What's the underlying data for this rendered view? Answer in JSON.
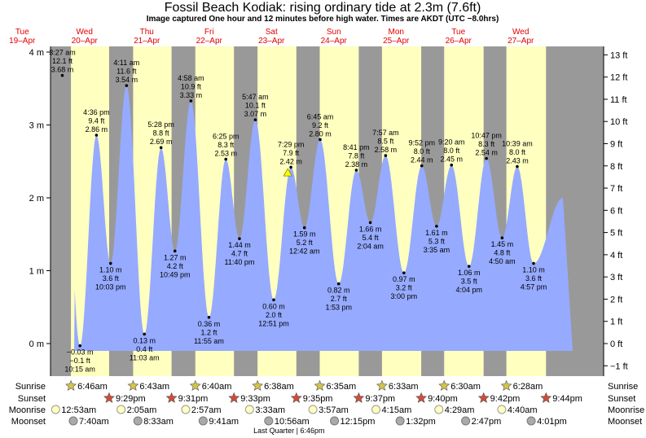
{
  "title": "Fossil Beach Kodiak: rising  ordinary tide at 2.3m (7.6ft)",
  "subtitle": "Image captured One hour and 12 minutes before high water. Times are AKDT (UTC −8.0hrs)",
  "colors": {
    "day_bg": "#ffffc0",
    "night_bg": "#999999",
    "tide_fill": "#96aaff",
    "day_label": "#e00000",
    "sun_star": "#d4c44a",
    "sunset_star": "#d24b3a",
    "moonrise": "#ffffc0",
    "moonset": "#aaaaaa"
  },
  "chart_data": {
    "type": "area",
    "ylabel_left_unit": "m",
    "ylabel_right_unit": "ft",
    "ylim_m": [
      -0.4,
      4.0
    ],
    "ylim_ft": [
      -1.3,
      13.1
    ],
    "left_ticks": [
      "4 m",
      "3 m",
      "2 m",
      "1 m",
      "0 m"
    ],
    "left_tick_values": [
      4,
      3,
      2,
      1,
      0
    ],
    "right_ticks": [
      "13 ft",
      "12 ft",
      "11 ft",
      "10 ft",
      "9 ft",
      "8 ft",
      "7 ft",
      "6 ft",
      "5 ft",
      "4 ft",
      "3 ft",
      "2 ft",
      "1 ft",
      "0 ft",
      "−1 ft"
    ],
    "right_tick_values": [
      13,
      12,
      11,
      10,
      9,
      8,
      7,
      6,
      5,
      4,
      3,
      2,
      1,
      0,
      -1
    ],
    "days": [
      {
        "name": "Tue",
        "date": "19–Apr"
      },
      {
        "name": "Wed",
        "date": "20–Apr"
      },
      {
        "name": "Thu",
        "date": "21–Apr"
      },
      {
        "name": "Fri",
        "date": "22–Apr"
      },
      {
        "name": "Sat",
        "date": "23–Apr"
      },
      {
        "name": "Sun",
        "date": "24–Apr"
      },
      {
        "name": "Mon",
        "date": "25–Apr"
      },
      {
        "name": "Tue",
        "date": "26–Apr"
      },
      {
        "name": "Wed",
        "date": "27–Apr"
      }
    ],
    "tides": [
      {
        "day": 0,
        "time": "3:27 am",
        "hour": 3.45,
        "m": 3.68,
        "label": [
          "3:27 am",
          "12.1 ft",
          "3.68 m"
        ],
        "pos": "above"
      },
      {
        "day": 0,
        "time": "10:15 am",
        "hour": 10.25,
        "m": -0.03,
        "label": [
          "−0.03 m",
          "−0.1 ft",
          "10:15 am"
        ],
        "pos": "below"
      },
      {
        "day": 0,
        "time": "4:36 pm",
        "hour": 16.6,
        "m": 2.86,
        "label": [
          "4:36 pm",
          "9.4 ft",
          "2.86 m"
        ],
        "pos": "above"
      },
      {
        "day": 0,
        "time": "10:03 pm",
        "hour": 22.05,
        "m": 1.1,
        "label": [
          "1.10 m",
          "3.6 ft",
          "10:03 pm"
        ],
        "pos": "below"
      },
      {
        "day": 1,
        "time": "4:11 am",
        "hour": 4.18,
        "m": 3.54,
        "label": [
          "4:11 am",
          "11.6 ft",
          "3.54 m"
        ],
        "pos": "above"
      },
      {
        "day": 1,
        "time": "11:03 am",
        "hour": 11.05,
        "m": 0.13,
        "label": [
          "0.13 m",
          "0.4 ft",
          "11:03 am"
        ],
        "pos": "below"
      },
      {
        "day": 1,
        "time": "5:28 pm",
        "hour": 17.47,
        "m": 2.69,
        "label": [
          "5:28 pm",
          "8.8 ft",
          "2.69 m"
        ],
        "pos": "above"
      },
      {
        "day": 1,
        "time": "10:49 pm",
        "hour": 22.82,
        "m": 1.27,
        "label": [
          "1.27 m",
          "4.2 ft",
          "10:49 pm"
        ],
        "pos": "below"
      },
      {
        "day": 2,
        "time": "4:58 am",
        "hour": 4.97,
        "m": 3.33,
        "label": [
          "4:58 am",
          "10.9 ft",
          "3.33 m"
        ],
        "pos": "above"
      },
      {
        "day": 2,
        "time": "11:55 am",
        "hour": 11.92,
        "m": 0.36,
        "label": [
          "0.36 m",
          "1.2 ft",
          "11:55 am"
        ],
        "pos": "below"
      },
      {
        "day": 2,
        "time": "6:25 pm",
        "hour": 18.42,
        "m": 2.53,
        "label": [
          "6:25 pm",
          "8.3 ft",
          "2.53 m"
        ],
        "pos": "above"
      },
      {
        "day": 2,
        "time": "11:40 pm",
        "hour": 23.67,
        "m": 1.44,
        "label": [
          "1.44 m",
          "4.7 ft",
          "11:40 pm"
        ],
        "pos": "below"
      },
      {
        "day": 3,
        "time": "5:47 am",
        "hour": 5.78,
        "m": 3.07,
        "label": [
          "5:47 am",
          "10.1 ft",
          "3.07 m"
        ],
        "pos": "above"
      },
      {
        "day": 3,
        "time": "12:51 pm",
        "hour": 12.85,
        "m": 0.6,
        "label": [
          "0.60 m",
          "2.0 ft",
          "12:51 pm"
        ],
        "pos": "below"
      },
      {
        "day": 3,
        "time": "7:29 pm",
        "hour": 19.48,
        "m": 2.42,
        "label": [
          "7:29 pm",
          "7.9 ft",
          "2.42 m"
        ],
        "pos": "above"
      },
      {
        "day": 4,
        "time": "12:42 am",
        "hour": 0.7,
        "m": 1.59,
        "label": [
          "1.59 m",
          "5.2 ft",
          "12:42 am"
        ],
        "pos": "below"
      },
      {
        "day": 4,
        "time": "6:45 am",
        "hour": 6.75,
        "m": 2.8,
        "label": [
          "6:45 am",
          "9.2 ft",
          "2.80 m"
        ],
        "pos": "above"
      },
      {
        "day": 4,
        "time": "1:53 pm",
        "hour": 13.88,
        "m": 0.82,
        "label": [
          "0.82 m",
          "2.7 ft",
          "1:53 pm"
        ],
        "pos": "below"
      },
      {
        "day": 4,
        "time": "8:41 pm",
        "hour": 20.68,
        "m": 2.38,
        "label": [
          "8:41 pm",
          "7.8 ft",
          "2.38 m"
        ],
        "pos": "above"
      },
      {
        "day": 5,
        "time": "2:04 am",
        "hour": 2.07,
        "m": 1.66,
        "label": [
          "1.66 m",
          "5.4 ft",
          "2:04 am"
        ],
        "pos": "below"
      },
      {
        "day": 5,
        "time": "7:57 am",
        "hour": 7.95,
        "m": 2.58,
        "label": [
          "7:57 am",
          "8.5 ft",
          "2.58 m"
        ],
        "pos": "above"
      },
      {
        "day": 5,
        "time": "3:00 pm",
        "hour": 15.0,
        "m": 0.97,
        "label": [
          "0.97 m",
          "3.2 ft",
          "3:00 pm"
        ],
        "pos": "below"
      },
      {
        "day": 5,
        "time": "9:52 pm",
        "hour": 21.87,
        "m": 2.44,
        "label": [
          "9:52 pm",
          "8.0 ft",
          "2.44 m"
        ],
        "pos": "above"
      },
      {
        "day": 6,
        "time": "3:35 am",
        "hour": 3.58,
        "m": 1.61,
        "label": [
          "1.61 m",
          "5.3 ft",
          "3:35 am"
        ],
        "pos": "below"
      },
      {
        "day": 6,
        "time": "9:20 am",
        "hour": 9.33,
        "m": 2.45,
        "label": [
          "9:20 am",
          "8.0 ft",
          "2.45 m"
        ],
        "pos": "above"
      },
      {
        "day": 6,
        "time": "4:04 pm",
        "hour": 16.07,
        "m": 1.06,
        "label": [
          "1.06 m",
          "3.5 ft",
          "4:04 pm"
        ],
        "pos": "below"
      },
      {
        "day": 6,
        "time": "10:47 pm",
        "hour": 22.78,
        "m": 2.54,
        "label": [
          "10:47 pm",
          "8.3 ft",
          "2.54 m"
        ],
        "pos": "above"
      },
      {
        "day": 7,
        "time": "4:50 am",
        "hour": 4.83,
        "m": 1.45,
        "label": [
          "1.45 m",
          "4.8 ft",
          "4:50 am"
        ],
        "pos": "below"
      },
      {
        "day": 7,
        "time": "10:39 am",
        "hour": 10.65,
        "m": 2.43,
        "label": [
          "10:39 am",
          "8.0 ft",
          "2.43 m"
        ],
        "pos": "above"
      },
      {
        "day": 7,
        "time": "4:57 pm",
        "hour": 16.95,
        "m": 1.1,
        "label": [
          "1.10 m",
          "3.6 ft",
          "4:57 pm"
        ],
        "pos": "below"
      }
    ],
    "current_marker": {
      "day": 3,
      "hour": 18.28,
      "m": 2.3
    },
    "sun": [
      {
        "rise": "6:46am",
        "rise_h": 6.77,
        "set": "9:29pm",
        "set_h": 21.48
      },
      {
        "rise": "6:43am",
        "rise_h": 6.72,
        "set": "9:31pm",
        "set_h": 21.52
      },
      {
        "rise": "6:40am",
        "rise_h": 6.67,
        "set": "9:33pm",
        "set_h": 21.55
      },
      {
        "rise": "6:38am",
        "rise_h": 6.63,
        "set": "9:35pm",
        "set_h": 21.58
      },
      {
        "rise": "6:35am",
        "rise_h": 6.58,
        "set": "9:37pm",
        "set_h": 21.62
      },
      {
        "rise": "6:33am",
        "rise_h": 6.55,
        "set": "9:40pm",
        "set_h": 21.67
      },
      {
        "rise": "6:30am",
        "rise_h": 6.5,
        "set": "9:42pm",
        "set_h": 21.7
      },
      {
        "rise": "6:28am",
        "rise_h": 6.47,
        "set": "9:44pm",
        "set_h": 21.73
      }
    ],
    "moonrise": [
      {
        "day": 0,
        "time": "12:53am",
        "hour": 0.88
      },
      {
        "day": 1,
        "time": "2:05am",
        "hour": 2.08
      },
      {
        "day": 2,
        "time": "2:57am",
        "hour": 2.95
      },
      {
        "day": 3,
        "time": "3:33am",
        "hour": 3.55
      },
      {
        "day": 4,
        "time": "3:57am",
        "hour": 3.95
      },
      {
        "day": 5,
        "time": "4:15am",
        "hour": 4.25
      },
      {
        "day": 6,
        "time": "4:29am",
        "hour": 4.48
      },
      {
        "day": 7,
        "time": "4:40am",
        "hour": 4.67
      }
    ],
    "moonset": [
      {
        "day": 0,
        "time": "7:40am",
        "hour": 7.67
      },
      {
        "day": 1,
        "time": "8:33am",
        "hour": 8.55
      },
      {
        "day": 2,
        "time": "9:41am",
        "hour": 9.68
      },
      {
        "day": 3,
        "time": "10:56am",
        "hour": 10.93
      },
      {
        "day": 4,
        "time": "12:15pm",
        "hour": 12.25
      },
      {
        "day": 5,
        "time": "1:32pm",
        "hour": 13.53
      },
      {
        "day": 6,
        "time": "2:47pm",
        "hour": 14.78
      },
      {
        "day": 7,
        "time": "4:01pm",
        "hour": 16.02
      }
    ],
    "row_labels": {
      "sunrise": "Sunrise",
      "sunset": "Sunset",
      "moonrise": "Moonrise",
      "moonset": "Moonset"
    },
    "moon_phase": {
      "text": "Last Quarter | 6:46pm",
      "day": 3,
      "hour": 18.77
    }
  }
}
